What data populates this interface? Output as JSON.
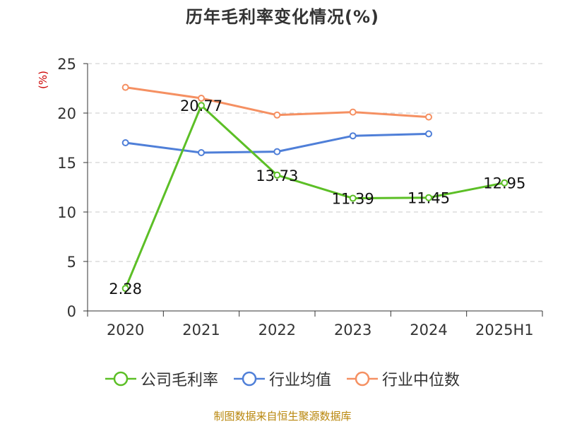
{
  "chart_data": {
    "type": "line",
    "title": "历年毛利率变化情况(%)",
    "ylabel": "(%)",
    "xlabel": "",
    "ylim": [
      0,
      25
    ],
    "yticks": [
      0,
      5,
      10,
      15,
      20,
      25
    ],
    "grid": true,
    "legend_position": "bottom",
    "categories": [
      "2020",
      "2021",
      "2022",
      "2023",
      "2024",
      "2025H1"
    ],
    "series": [
      {
        "name": "公司毛利率",
        "color": "#5cbf26",
        "values": [
          2.28,
          20.77,
          13.73,
          11.39,
          11.45,
          12.95
        ],
        "show_labels": true
      },
      {
        "name": "行业均值",
        "color": "#4f7fd8",
        "values": [
          17.0,
          16.0,
          16.1,
          17.7,
          17.9,
          null
        ],
        "show_labels": false
      },
      {
        "name": "行业中位数",
        "color": "#f59062",
        "values": [
          22.6,
          21.5,
          19.8,
          20.1,
          19.6,
          null
        ],
        "show_labels": false
      }
    ]
  },
  "source_text": "制图数据来自恒生聚源数据库"
}
